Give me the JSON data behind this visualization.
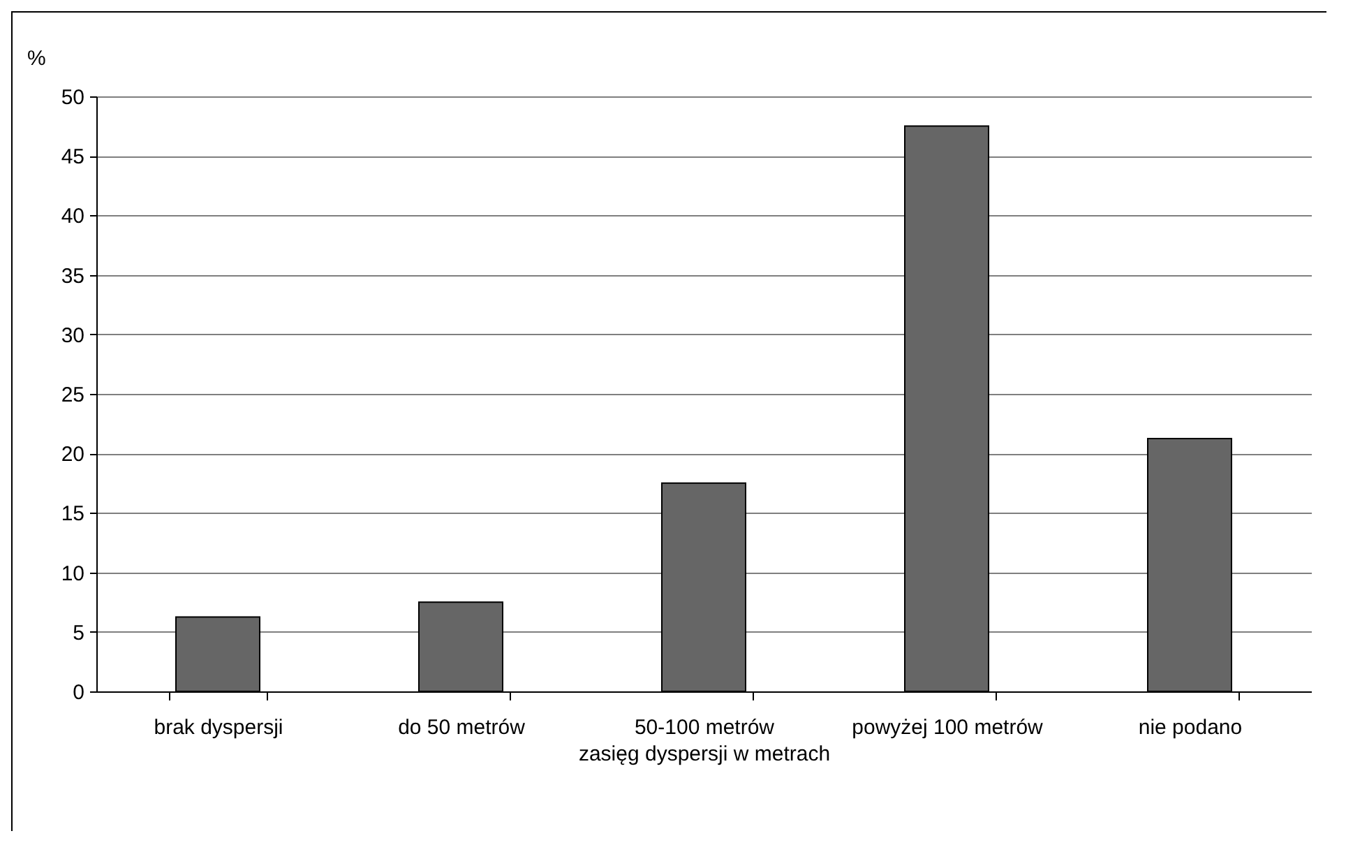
{
  "chart_data": {
    "type": "bar",
    "xlabel": "zasięg dyspersji w metrach",
    "ylabel": "%",
    "categories": [
      "brak dyspersji",
      "do 50 metrów",
      "50-100 metrów",
      "powyżej 100 metrów",
      "nie podano"
    ],
    "values": [
      6.25,
      7.5,
      17.5,
      47.5,
      21.25
    ],
    "color": "#666666",
    "ylim": [
      0,
      50
    ],
    "yticks": [
      0,
      5,
      10,
      15,
      20,
      25,
      30,
      35,
      40,
      45,
      50
    ],
    "grid": "y"
  }
}
